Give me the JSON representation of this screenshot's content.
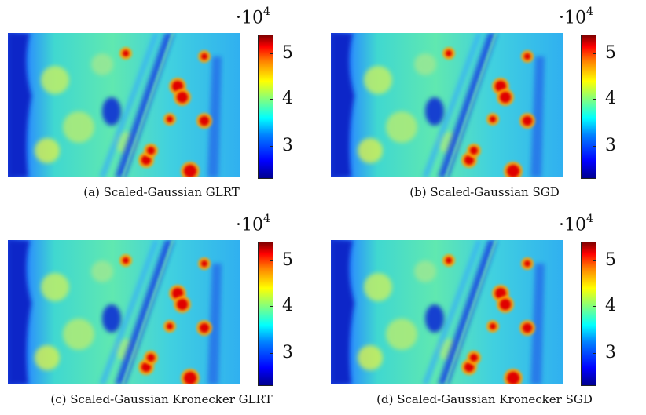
{
  "colorbar": {
    "multiplier_base": "·10",
    "multiplier_exponent": "4",
    "ticks": [
      "5",
      "4",
      "3"
    ]
  },
  "panels": [
    {
      "caption": "(a) Scaled-Gaussian GLRT",
      "hotspot_seed": 1
    },
    {
      "caption": "(b) Scaled-Gaussian SGD",
      "hotspot_seed": 2
    },
    {
      "caption": "(c) Scaled-Gaussian Kronecker GLRT",
      "hotspot_seed": 3
    },
    {
      "caption": "(d) Scaled-Gaussian Kronecker SGD",
      "hotspot_seed": 4
    }
  ],
  "colors": {
    "low": "#0000c8",
    "mid": "#40e0a0",
    "high": "#ff0000"
  }
}
